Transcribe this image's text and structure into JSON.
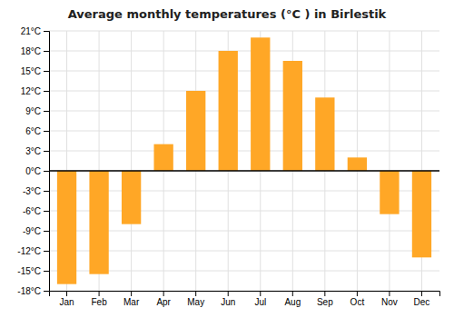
{
  "chart_data": {
    "type": "bar",
    "title": "Average monthly temperatures (°C ) in Birlestik",
    "categories": [
      "Jan",
      "Feb",
      "Mar",
      "Apr",
      "May",
      "Jun",
      "Jul",
      "Aug",
      "Sep",
      "Oct",
      "Nov",
      "Dec"
    ],
    "values": [
      -17,
      -15.5,
      -8,
      4,
      12,
      18,
      20,
      16.5,
      11,
      2,
      -6.5,
      -13
    ],
    "color": "#FFA726",
    "ylim": [
      -18,
      21
    ],
    "yticks": [
      {
        "value": -18,
        "label": "-18°C"
      },
      {
        "value": -15,
        "label": "-15°C"
      },
      {
        "value": -12,
        "label": "-12°C"
      },
      {
        "value": -9,
        "label": "-9°C"
      },
      {
        "value": -6,
        "label": "-6°C"
      },
      {
        "value": -3,
        "label": "-3°C"
      },
      {
        "value": 0,
        "label": "0°C"
      },
      {
        "value": 3,
        "label": "3°C"
      },
      {
        "value": 6,
        "label": "6°C"
      },
      {
        "value": 9,
        "label": "9°C"
      },
      {
        "value": 12,
        "label": "12°C"
      },
      {
        "value": 15,
        "label": "15°C"
      },
      {
        "value": 18,
        "label": "18°C"
      },
      {
        "value": 21,
        "label": "21°C"
      }
    ],
    "grid": true
  }
}
